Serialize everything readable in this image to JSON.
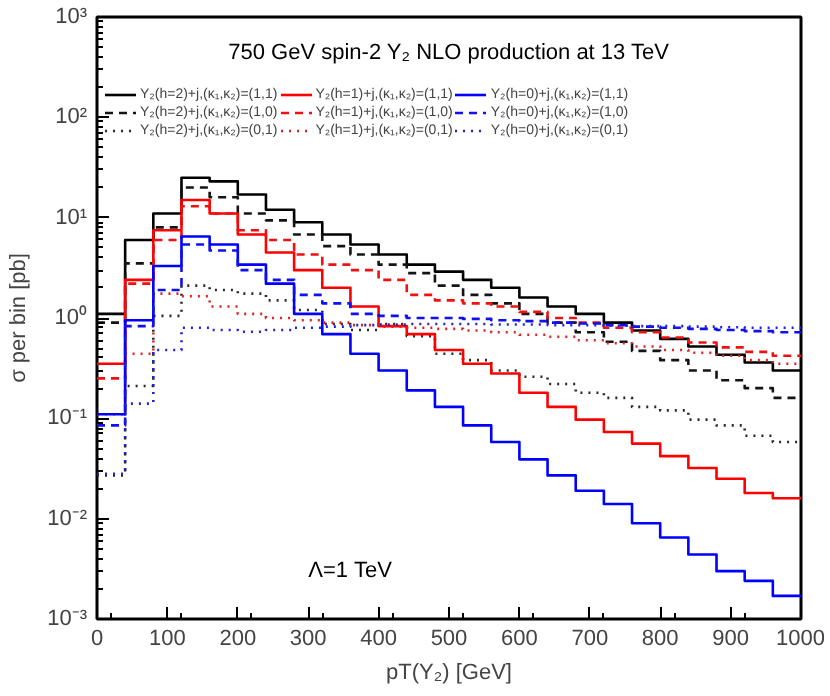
{
  "chart_data": {
    "type": "histogram",
    "title": "750 GeV spin-2 Y₂ NLO production at 13 TeV",
    "xlabel": "pT(Y₂) [GeV]",
    "ylabel": "σ per bin [pb]",
    "annotations": [
      "Λ=1 TeV"
    ],
    "log": "y",
    "grid": false,
    "legend": "top",
    "bins": [
      0,
      40,
      80,
      120,
      160,
      200,
      240,
      280,
      320,
      360,
      400,
      440,
      480,
      520,
      560,
      600,
      640,
      680,
      720,
      760,
      800,
      840,
      880,
      920,
      960,
      1000
    ],
    "xlim": [
      0,
      1000
    ],
    "ylim": [
      0.001,
      1000
    ],
    "xticks": [
      0,
      100,
      200,
      300,
      400,
      500,
      600,
      700,
      800,
      900,
      1000
    ],
    "yticks": [
      {
        "value": 0.001,
        "label": "10⁻³"
      },
      {
        "value": 0.01,
        "label": "10⁻²"
      },
      {
        "value": 0.1,
        "label": "10⁻¹"
      },
      {
        "value": 1,
        "label": "10⁰"
      },
      {
        "value": 10,
        "label": "10¹"
      },
      {
        "value": 100,
        "label": "10²"
      },
      {
        "value": 1000,
        "label": "10³"
      }
    ],
    "series": [
      {
        "name": "Y₂(h=2)+j,(κ₁,κ₂)=(1,1)",
        "color": "#000000",
        "line_style": "solid",
        "values": [
          1.1,
          6,
          11,
          25,
          23,
          17,
          12,
          9,
          6.8,
          5.4,
          4.3,
          3.4,
          2.9,
          2.4,
          2.0,
          1.6,
          1.3,
          1.1,
          0.9,
          0.75,
          0.62,
          0.52,
          0.43,
          0.36,
          0.3
        ]
      },
      {
        "name": "Y₂(h=2)+j,(κ₁,κ₂)=(1,0)",
        "color": "#141414",
        "line_style": "dashed",
        "values": [
          0.9,
          3.5,
          8,
          20,
          16,
          11,
          9.4,
          6.8,
          5.2,
          4.3,
          3.4,
          2.8,
          2.1,
          1.7,
          1.4,
          1.1,
          0.9,
          0.72,
          0.58,
          0.47,
          0.38,
          0.3,
          0.24,
          0.2,
          0.16
        ]
      },
      {
        "name": "Y₂(h=2)+j,(κ₁,κ₂)=(0,1)",
        "color": "#282828",
        "line_style": "dotted",
        "values": [
          0.027,
          0.21,
          1.05,
          2.1,
          1.9,
          1.75,
          1.5,
          1.2,
          0.87,
          0.76,
          0.87,
          0.66,
          0.44,
          0.38,
          0.3,
          0.26,
          0.22,
          0.18,
          0.16,
          0.13,
          0.12,
          0.097,
          0.085,
          0.067,
          0.058
        ]
      },
      {
        "name": "Y₂(h=1)+j,(κ₁,κ₂)=(1,1)",
        "color": "#ff0000",
        "line_style": "solid",
        "values": [
          0.35,
          2.4,
          7.5,
          15,
          11,
          6.8,
          4.5,
          3,
          2,
          1.3,
          0.83,
          0.69,
          0.48,
          0.35,
          0.28,
          0.18,
          0.13,
          0.097,
          0.073,
          0.056,
          0.042,
          0.032,
          0.025,
          0.018,
          0.016
        ]
      },
      {
        "name": "Y₂(h=1)+j,(κ₁,κ₂)=(1,0)",
        "color": "#f01010",
        "line_style": "dashed",
        "values": [
          0.25,
          2.2,
          6,
          13,
          11,
          7.5,
          6,
          4.3,
          3.4,
          3,
          2.4,
          1.7,
          1.5,
          1.4,
          1.3,
          1.15,
          1.0,
          0.9,
          0.8,
          0.72,
          0.64,
          0.57,
          0.51,
          0.46,
          0.42
        ]
      },
      {
        "name": "Y₂(h=1)+j,(κ₁,κ₂)=(0,1)",
        "color": "#e02020",
        "line_style": "dotted",
        "values": [
          0.11,
          0.44,
          1.75,
          1.65,
          1.3,
          1.1,
          1.0,
          0.95,
          0.9,
          0.85,
          0.82,
          0.8,
          0.78,
          0.75,
          0.72,
          0.68,
          0.65,
          0.6,
          0.56,
          0.52,
          0.48,
          0.45,
          0.42,
          0.38,
          0.35
        ]
      },
      {
        "name": "Y₂(h=0)+j,(κ₁,κ₂)=(1,1)",
        "color": "#0000ff",
        "line_style": "solid",
        "values": [
          0.11,
          0.95,
          3.3,
          6.5,
          5.4,
          3.4,
          2.2,
          1.1,
          0.69,
          0.44,
          0.3,
          0.19,
          0.13,
          0.085,
          0.058,
          0.039,
          0.027,
          0.019,
          0.014,
          0.009,
          0.0065,
          0.0044,
          0.003,
          0.0024,
          0.0017
        ]
      },
      {
        "name": "Y₂(h=0)+j,(κ₁,κ₂)=(1,0)",
        "color": "#1010f0",
        "line_style": "dashed",
        "values": [
          0.085,
          0.83,
          1.9,
          5.4,
          4.7,
          3,
          2.4,
          1.7,
          1.4,
          1.1,
          1.05,
          1.0,
          1.0,
          0.98,
          0.95,
          0.93,
          0.9,
          0.88,
          0.85,
          0.82,
          0.8,
          0.78,
          0.76,
          0.74,
          0.72
        ]
      },
      {
        "name": "Y₂(h=0)+j,(κ₁,κ₂)=(0,1)",
        "color": "#2020e0",
        "line_style": "dotted",
        "values": [
          0.028,
          0.14,
          0.48,
          0.8,
          0.76,
          0.73,
          0.76,
          0.8,
          0.82,
          0.85,
          0.86,
          0.87,
          0.87,
          0.87,
          0.86,
          0.86,
          0.85,
          0.85,
          0.84,
          0.83,
          0.83,
          0.82,
          0.81,
          0.8,
          0.8
        ]
      }
    ]
  }
}
